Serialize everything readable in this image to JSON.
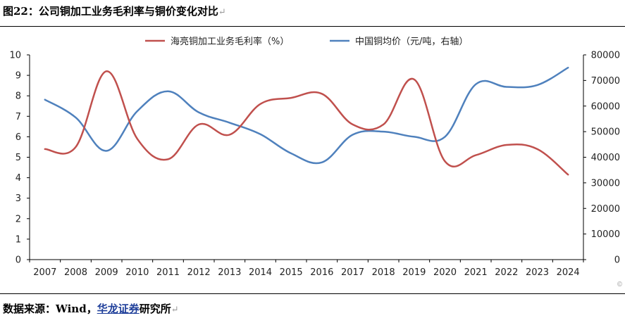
{
  "page": {
    "title": "图22：公司铜加工业务毛利率与铜价变化对比",
    "source_label": "数据来源：",
    "source_main": "Wind，",
    "source_org": "华龙证券",
    "source_tail": "研究所",
    "paragraph_mark": "↵",
    "corner_mark": "©"
  },
  "chart_data": {
    "type": "line",
    "title": "",
    "x": [
      "2007",
      "2008",
      "2009",
      "2010",
      "2011",
      "2012",
      "2013",
      "2014",
      "2015",
      "2016",
      "2017",
      "2018",
      "2019",
      "2020",
      "2021",
      "2022",
      "2023",
      "2024"
    ],
    "series": [
      {
        "name": "海亮铜加工业务毛利率（%）",
        "axis": "left",
        "color": "#c0504d",
        "values": [
          5.4,
          5.5,
          9.2,
          5.9,
          4.9,
          6.6,
          6.1,
          7.6,
          7.9,
          8.1,
          6.6,
          6.6,
          8.8,
          4.8,
          5.1,
          5.6,
          5.4,
          4.15
        ]
      },
      {
        "name": "中国铜均价（元/吨，右轴）",
        "axis": "right",
        "color": "#4f81bd",
        "values": [
          62500,
          55500,
          42500,
          58000,
          65800,
          57500,
          53500,
          49000,
          41500,
          38000,
          48800,
          50000,
          48000,
          48000,
          68500,
          67500,
          68200,
          75000
        ]
      }
    ],
    "y_left": {
      "min": 0,
      "max": 10,
      "ticks": [
        "0",
        "1",
        "2",
        "3",
        "4",
        "5",
        "6",
        "7",
        "8",
        "9",
        "10"
      ]
    },
    "y_right": {
      "min": 0,
      "max": 80000,
      "ticks": [
        "0",
        "10000",
        "20000",
        "30000",
        "40000",
        "50000",
        "60000",
        "70000",
        "80000"
      ]
    },
    "grid": false,
    "legend": "top-center"
  }
}
